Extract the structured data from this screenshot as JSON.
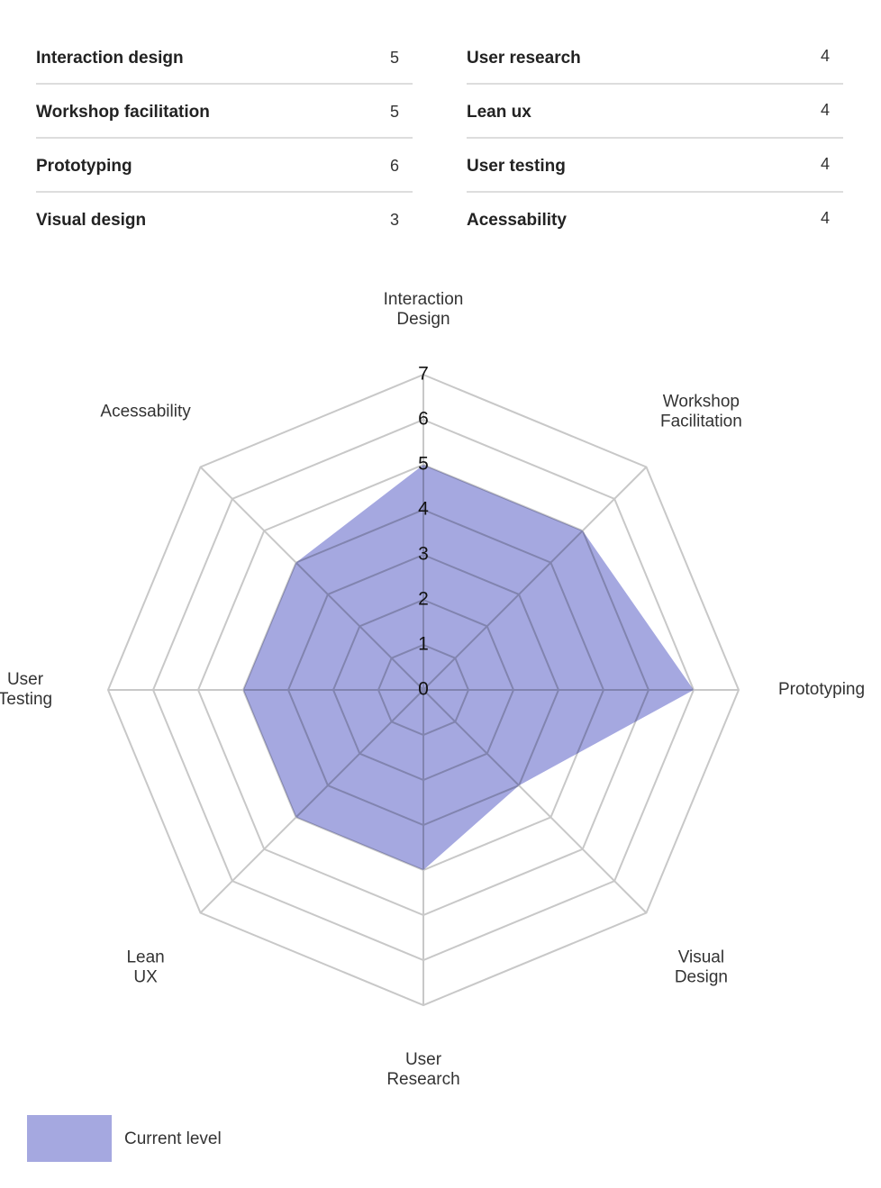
{
  "skill_table": {
    "columns": [
      [
        {
          "name": "Interaction design",
          "level": 5
        },
        {
          "name": "Workshop facilitation",
          "level": 5
        },
        {
          "name": "Prototyping",
          "level": 6
        },
        {
          "name": "Visual design",
          "level": 3
        }
      ],
      [
        {
          "name": "User research",
          "level": 4
        },
        {
          "name": "Lean ux",
          "level": 4
        },
        {
          "name": "User testing",
          "level": 4
        },
        {
          "name": "Acessability",
          "level": 4
        }
      ]
    ]
  },
  "chart_data": {
    "type": "radar",
    "categories": [
      "Interaction Design",
      "Workshop Facilitation",
      "Prototyping",
      "Visual Design",
      "User Research",
      "Lean UX",
      "User Testing",
      "Acessability"
    ],
    "series": [
      {
        "name": "Current level",
        "color": "#a5a8e0",
        "values": [
          5,
          5,
          6,
          3,
          4,
          4,
          4,
          4
        ]
      }
    ],
    "rlim": [
      0,
      7
    ],
    "rticks": [
      0,
      1,
      2,
      3,
      4,
      5,
      6,
      7
    ],
    "grid": true
  }
}
